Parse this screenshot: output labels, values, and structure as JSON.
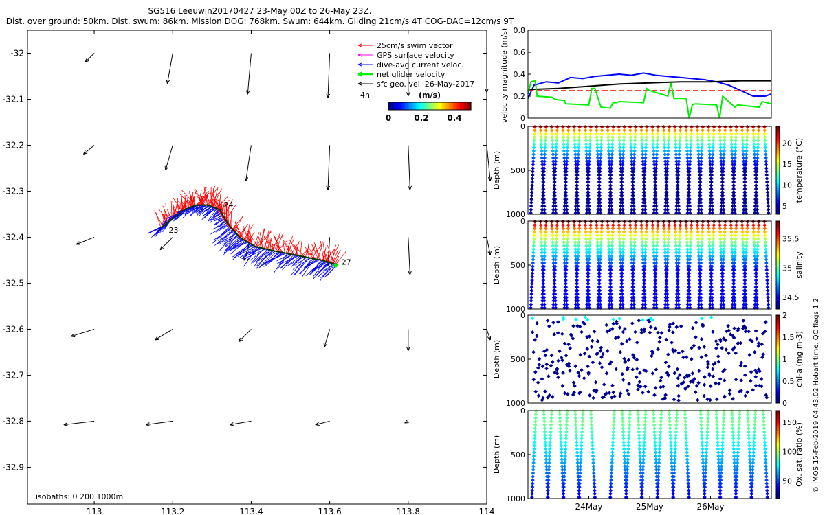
{
  "header": {
    "title_line1": "SG516 Leeuwin20170427 23-May 00Z to 26-May 23Z.",
    "title_line2": "Dist. over ground: 50km. Dist. swum: 86km. Mission DOG: 768km. Swum: 644km. Gliding 21cm/s 4T COG-DAC=12cm/s 9T"
  },
  "credit": "© IMOS 15-Feb-2019 04:43:02 Hobart time. QC flags 1  2",
  "chart_data": [
    {
      "type": "vector-map",
      "name": "glider-track-map",
      "xlim": [
        112.83,
        114.0
      ],
      "ylim": [
        -32.98,
        -31.95
      ],
      "x_ticks": [
        113,
        113.2,
        113.4,
        113.6,
        113.8,
        114
      ],
      "x_tick_labels": [
        "113",
        "113.2",
        "113.4",
        "113.6",
        "113.8",
        "114"
      ],
      "y_ticks": [
        -32,
        -32.1,
        -32.2,
        -32.3,
        -32.4,
        -32.5,
        -32.6,
        -32.7,
        -32.8,
        -32.9
      ],
      "y_tick_labels": [
        "-32",
        "-32.1",
        "-32.2",
        "-32.3",
        "-32.4",
        "-32.5",
        "-32.6",
        "-32.7",
        "-32.8",
        "-32.9"
      ],
      "legend": [
        {
          "label": "25cm/s swim vector",
          "color": "#ff0000"
        },
        {
          "label": "GPS surface velocity",
          "color": "#ff00ff"
        },
        {
          "label": "dive-avg current veloc.",
          "color": "#0000ff"
        },
        {
          "label": "net glider velocity",
          "color": "#00ee00"
        },
        {
          "label": "sfc geo. vel. 26-May-2017",
          "color": "#000000"
        }
      ],
      "legend_extra": "4h",
      "colorbar": {
        "title": "(m/s)",
        "ticks": [
          "0",
          "0.2",
          "0.4"
        ],
        "range": [
          0,
          0.5
        ]
      },
      "isobath_label": "isobaths: 0   200   1000m",
      "day_labels": [
        {
          "text": "23",
          "lon": 113.19,
          "lat": -32.39
        },
        {
          "text": "24",
          "lon": 113.33,
          "lat": -32.335
        },
        {
          "text": "27",
          "lon": 113.63,
          "lat": -32.46
        }
      ],
      "track": [
        [
          113.17,
          -32.38
        ],
        [
          113.2,
          -32.36
        ],
        [
          113.23,
          -32.34
        ],
        [
          113.26,
          -32.33
        ],
        [
          113.29,
          -32.33
        ],
        [
          113.32,
          -32.34
        ],
        [
          113.34,
          -32.37
        ],
        [
          113.37,
          -32.4
        ],
        [
          113.41,
          -32.42
        ],
        [
          113.46,
          -32.43
        ],
        [
          113.52,
          -32.44
        ],
        [
          113.58,
          -32.45
        ],
        [
          113.62,
          -32.46
        ]
      ],
      "geo_vectors": [
        {
          "lon": 113.0,
          "lat": -32.0,
          "u": -0.05,
          "v": -0.05
        },
        {
          "lon": 113.2,
          "lat": -32.0,
          "u": -0.03,
          "v": -0.17
        },
        {
          "lon": 113.4,
          "lat": -32.0,
          "u": -0.02,
          "v": -0.23
        },
        {
          "lon": 113.6,
          "lat": -32.0,
          "u": -0.01,
          "v": -0.25
        },
        {
          "lon": 113.8,
          "lat": -32.0,
          "u": 0.0,
          "v": -0.24
        },
        {
          "lon": 114.0,
          "lat": -32.0,
          "u": 0.0,
          "v": -0.22
        },
        {
          "lon": 113.0,
          "lat": -32.2,
          "u": -0.06,
          "v": -0.05
        },
        {
          "lon": 113.2,
          "lat": -32.2,
          "u": -0.04,
          "v": -0.14
        },
        {
          "lon": 113.4,
          "lat": -32.2,
          "u": -0.03,
          "v": -0.2
        },
        {
          "lon": 113.6,
          "lat": -32.2,
          "u": -0.01,
          "v": -0.25
        },
        {
          "lon": 113.8,
          "lat": -32.2,
          "u": 0.01,
          "v": -0.25
        },
        {
          "lon": 114.0,
          "lat": -32.2,
          "u": 0.02,
          "v": -0.2
        },
        {
          "lon": 113.0,
          "lat": -32.4,
          "u": -0.1,
          "v": -0.04
        },
        {
          "lon": 113.2,
          "lat": -32.4,
          "u": -0.07,
          "v": -0.07
        },
        {
          "lon": 113.4,
          "lat": -32.4,
          "u": -0.04,
          "v": -0.13
        },
        {
          "lon": 113.6,
          "lat": -32.4,
          "u": -0.01,
          "v": -0.16
        },
        {
          "lon": 113.8,
          "lat": -32.4,
          "u": 0.01,
          "v": -0.21
        },
        {
          "lon": 114.0,
          "lat": -32.4,
          "u": 0.02,
          "v": -0.1
        },
        {
          "lon": 113.0,
          "lat": -32.6,
          "u": -0.13,
          "v": -0.04
        },
        {
          "lon": 113.2,
          "lat": -32.6,
          "u": -0.1,
          "v": -0.06
        },
        {
          "lon": 113.4,
          "lat": -32.6,
          "u": -0.07,
          "v": -0.07
        },
        {
          "lon": 113.6,
          "lat": -32.6,
          "u": -0.03,
          "v": -0.1
        },
        {
          "lon": 113.8,
          "lat": -32.6,
          "u": 0.0,
          "v": -0.12
        },
        {
          "lon": 114.0,
          "lat": -32.6,
          "u": 0.02,
          "v": -0.06
        },
        {
          "lon": 113.0,
          "lat": -32.8,
          "u": -0.17,
          "v": -0.02
        },
        {
          "lon": 113.2,
          "lat": -32.8,
          "u": -0.15,
          "v": -0.02
        },
        {
          "lon": 113.4,
          "lat": -32.8,
          "u": -0.12,
          "v": -0.02
        },
        {
          "lon": 113.6,
          "lat": -32.8,
          "u": -0.08,
          "v": -0.02
        },
        {
          "lon": 113.8,
          "lat": -32.8,
          "u": -0.02,
          "v": -0.01
        },
        {
          "lon": 114.0,
          "lat": -32.8,
          "u": 0.0,
          "v": 0.0
        }
      ]
    },
    {
      "type": "line",
      "name": "velocity-magnitude-plot",
      "ylabel": "velocity magnitude (m/s)",
      "ylim": [
        0,
        0.8
      ],
      "y_ticks": [
        0,
        0.2,
        0.4,
        0.6,
        0.8
      ],
      "y_tick_labels": [
        "0",
        "0.2",
        "0.4",
        "0.6",
        "0.8"
      ],
      "xlim": [
        0,
        4
      ],
      "series": [
        {
          "name": "dive-avg current",
          "color": "#0000ff",
          "x": [
            0,
            0.1,
            0.3,
            0.5,
            0.7,
            0.9,
            1.1,
            1.3,
            1.5,
            1.7,
            1.9,
            2.1,
            2.3,
            2.5,
            2.7,
            2.9,
            3.1,
            3.3,
            3.5,
            3.7,
            3.9,
            4.0
          ],
          "y": [
            0.18,
            0.3,
            0.33,
            0.32,
            0.37,
            0.36,
            0.38,
            0.39,
            0.4,
            0.39,
            0.41,
            0.39,
            0.38,
            0.37,
            0.36,
            0.35,
            0.33,
            0.3,
            0.25,
            0.2,
            0.2,
            0.22
          ]
        },
        {
          "name": "sfc geo. vel.",
          "color": "#000000",
          "x": [
            0,
            0.5,
            1.0,
            1.5,
            2.0,
            2.5,
            3.0,
            3.5,
            4.0
          ],
          "y": [
            0.26,
            0.27,
            0.29,
            0.31,
            0.32,
            0.33,
            0.33,
            0.34,
            0.34
          ]
        },
        {
          "name": "swim vector 25cm/s",
          "color": "#ff0000",
          "dashed": true,
          "x": [
            0,
            4.0
          ],
          "y": [
            0.25,
            0.25
          ]
        },
        {
          "name": "net glider velocity",
          "color": "#00ee00",
          "x": [
            0,
            0.05,
            0.12,
            0.15,
            0.4,
            0.45,
            0.6,
            0.62,
            1.0,
            1.05,
            1.1,
            1.2,
            1.35,
            1.4,
            1.45,
            1.5,
            1.9,
            1.95,
            2.0,
            2.3,
            2.35,
            2.4,
            2.6,
            2.65,
            2.7,
            2.75,
            3.1,
            3.15,
            3.2,
            3.4,
            3.45,
            3.8,
            3.85,
            4.0
          ],
          "y": [
            0.22,
            0.33,
            0.34,
            0.2,
            0.19,
            0.17,
            0.16,
            0.13,
            0.12,
            0.27,
            0.27,
            0.1,
            0.09,
            0.14,
            0.14,
            0.15,
            0.14,
            0.27,
            0.25,
            0.2,
            0.32,
            0.18,
            0.18,
            0.0,
            0.12,
            0.13,
            0.12,
            0.0,
            0.2,
            0.1,
            0.12,
            0.1,
            0.15,
            0.13
          ]
        }
      ]
    },
    {
      "type": "scatter",
      "name": "temperature-section",
      "ylabel": "Depth (m)",
      "y_ticks": [
        0,
        500,
        1000
      ],
      "y_tick_labels": [
        "0",
        "500",
        "1000"
      ],
      "colorbar_label": "temperature (°C)",
      "colorbar_ticks": [
        "5",
        "10",
        "15",
        "20"
      ],
      "colorbar_range": [
        3,
        24
      ],
      "dives": 42,
      "colormap": "jet",
      "profile": "surface-warm"
    },
    {
      "type": "scatter",
      "name": "salinity-section",
      "ylabel": "Depth (m)",
      "y_ticks": [
        0,
        500,
        1000
      ],
      "y_tick_labels": [
        "0",
        "500",
        "1000"
      ],
      "colorbar_label": "salinity",
      "colorbar_ticks": [
        "34.5",
        "35",
        "35.5"
      ],
      "colorbar_range": [
        34.3,
        35.8
      ],
      "dives": 42,
      "colormap": "jet",
      "profile": "surface-salty"
    },
    {
      "type": "scatter",
      "name": "chlorophyll-section",
      "ylabel": "Depth (m)",
      "y_ticks": [
        0,
        500,
        1000
      ],
      "y_tick_labels": [
        "0",
        "500",
        "1000"
      ],
      "colorbar_label": "chl-a (mg m-3)",
      "colorbar_ticks": [
        "0",
        "0.5",
        "1",
        "1.5",
        "2"
      ],
      "colorbar_range": [
        0,
        2
      ],
      "dives": 42,
      "colormap": "jet",
      "profile": "sparse-low"
    },
    {
      "type": "scatter",
      "name": "oxygen-section",
      "ylabel": "Depth (m)",
      "y_ticks": [
        0,
        500,
        1000
      ],
      "y_tick_labels": [
        "0",
        "500",
        "1000"
      ],
      "x_tick_labels": [
        "24May",
        "25May",
        "26May"
      ],
      "x_tick_days": [
        1,
        2,
        3
      ],
      "colorbar_label": "Ox. sat. ratio (%)",
      "colorbar_ticks": [
        "50",
        "100",
        "150"
      ],
      "colorbar_range": [
        20,
        170
      ],
      "dives": 30,
      "colormap": "jet",
      "profile": "oxygen"
    }
  ]
}
